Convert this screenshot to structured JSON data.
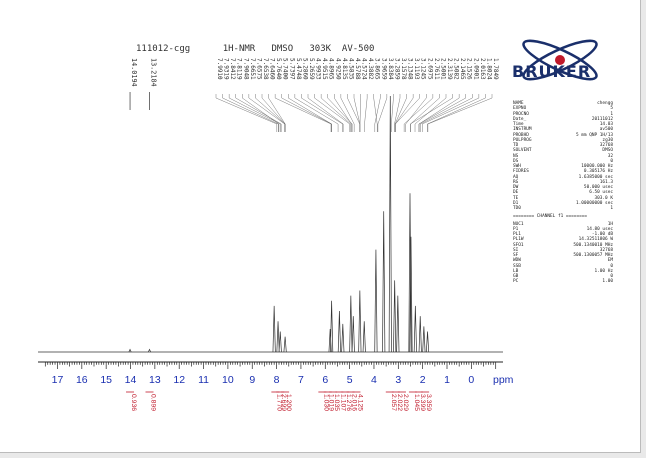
{
  "header": {
    "title": "111012-cgg      1H-NMR   DMSO   303K  AV-500"
  },
  "brand": {
    "name": "BRUKER",
    "color": "#1a2f6b",
    "accent": "#c0192a"
  },
  "params": [
    {
      "k": "NAME",
      "v": "chengg"
    },
    {
      "k": "EXPNO",
      "v": "5"
    },
    {
      "k": "PROCNO",
      "v": "1"
    },
    {
      "k": "Date_",
      "v": "20111012"
    },
    {
      "k": "Time",
      "v": "14.03"
    },
    {
      "k": "INSTRUM",
      "v": "av500"
    },
    {
      "k": "PROBHD",
      "v": "5 mm QNP 1H/13"
    },
    {
      "k": "PULPROG",
      "v": "zg30"
    },
    {
      "k": "TD",
      "v": "32768"
    },
    {
      "k": "SOLVENT",
      "v": "DMSO"
    },
    {
      "k": "NS",
      "v": "32"
    },
    {
      "k": "DS",
      "v": "0"
    },
    {
      "k": "SWH",
      "v": "10000.000 Hz"
    },
    {
      "k": "FIDRES",
      "v": "0.305176 Hz"
    },
    {
      "k": "AQ",
      "v": "1.6385000 sec"
    },
    {
      "k": "RG",
      "v": "161.3"
    },
    {
      "k": "DW",
      "v": "50.000 usec"
    },
    {
      "k": "DE",
      "v": "6.50 usec"
    },
    {
      "k": "TE",
      "v": "303.0 K"
    },
    {
      "k": "D1",
      "v": "1.00000000 sec"
    },
    {
      "k": "TD0",
      "v": "1"
    }
  ],
  "channel_title": "======== CHANNEL f1 ========",
  "channel": [
    {
      "k": "NUC1",
      "v": "1H"
    },
    {
      "k": "P1",
      "v": "14.80 usec"
    },
    {
      "k": "PL1",
      "v": "-1.00 dB"
    },
    {
      "k": "PL1W",
      "v": "14.32511806 W"
    },
    {
      "k": "SFO1",
      "v": "500.1340010 MHz"
    },
    {
      "k": "SI",
      "v": "32768"
    },
    {
      "k": "SF",
      "v": "500.1300057 MHz"
    },
    {
      "k": "WDW",
      "v": "EM"
    },
    {
      "k": "SSB",
      "v": "0"
    },
    {
      "k": "LB",
      "v": "1.00 Hz"
    },
    {
      "k": "GB",
      "v": "0"
    },
    {
      "k": "PC",
      "v": "1.00"
    }
  ],
  "chart_data": {
    "type": "line",
    "xlabel": "ppm",
    "xlim": [
      17.8,
      -1.3
    ],
    "axis_ticks": [
      "17",
      "16",
      "15",
      "14",
      "13",
      "12",
      "11",
      "10",
      "9",
      "8",
      "7",
      "6",
      "5",
      "4",
      "3",
      "2",
      "1",
      "0"
    ],
    "isolated_peak_labels": [
      "14.0194",
      "13.2184"
    ],
    "cluster_peak_labels": [
      "7.9910",
      "7.9319",
      "7.8412",
      "7.8119",
      "7.9048",
      "7.6651",
      "7.6575",
      "7.6538",
      "7.6460",
      "5.7640",
      "5.7400",
      "5.7397",
      "5.4748",
      "5.2860",
      "5.2659",
      "4.9933",
      "4.9515",
      "4.8965",
      "4.9250",
      "4.8135",
      "4.5835",
      "4.5788",
      "4.5724",
      "4.3882",
      "3.8665",
      "3.9659",
      "3.8384",
      "3.2859",
      "3.1578",
      "3.1348",
      "3.1193",
      "3.1245",
      "2.6975",
      "2.7611",
      "2.5001",
      "2.3139",
      "2.5082",
      "2.1465",
      "2.1526",
      "2.0901",
      "2.0163",
      "1.8024",
      "1.7849"
    ],
    "integrals": [
      {
        "ppm": 14.02,
        "value": "0.936"
      },
      {
        "ppm": 13.22,
        "value": "0.899"
      },
      {
        "ppm": 8.05,
        "value": "1.770"
      },
      {
        "ppm": 7.85,
        "value": "2.699"
      },
      {
        "ppm": 7.65,
        "value": "1.200"
      },
      {
        "ppm": 6.12,
        "value": "1.030"
      },
      {
        "ppm": 5.9,
        "value": "1.019"
      },
      {
        "ppm": 5.68,
        "value": "1.035"
      },
      {
        "ppm": 5.42,
        "value": "1.107"
      },
      {
        "ppm": 5.18,
        "value": "1.276"
      },
      {
        "ppm": 4.96,
        "value": "2.016"
      },
      {
        "ppm": 4.72,
        "value": "4.125"
      },
      {
        "ppm": 3.35,
        "value": "2.057"
      },
      {
        "ppm": 3.1,
        "value": "2.022"
      },
      {
        "ppm": 2.85,
        "value": "2.029"
      },
      {
        "ppm": 2.4,
        "value": "1.045"
      },
      {
        "ppm": 2.15,
        "value": "3.399"
      },
      {
        "ppm": 1.9,
        "value": "3.359"
      }
    ],
    "peaks": [
      {
        "ppm": 14.02,
        "h": 0.01
      },
      {
        "ppm": 13.22,
        "h": 0.01
      },
      {
        "ppm": 8.1,
        "h": 0.18
      },
      {
        "ppm": 7.94,
        "h": 0.12
      },
      {
        "ppm": 7.85,
        "h": 0.08
      },
      {
        "ppm": 7.65,
        "h": 0.06
      },
      {
        "ppm": 5.8,
        "h": 0.09
      },
      {
        "ppm": 5.74,
        "h": 0.2
      },
      {
        "ppm": 5.42,
        "h": 0.16
      },
      {
        "ppm": 5.28,
        "h": 0.11
      },
      {
        "ppm": 4.95,
        "h": 0.22
      },
      {
        "ppm": 4.85,
        "h": 0.14
      },
      {
        "ppm": 4.58,
        "h": 0.24
      },
      {
        "ppm": 4.4,
        "h": 0.12
      },
      {
        "ppm": 3.92,
        "h": 0.4
      },
      {
        "ppm": 3.6,
        "h": 0.55
      },
      {
        "ppm": 3.33,
        "h": 1.0
      },
      {
        "ppm": 3.15,
        "h": 0.28
      },
      {
        "ppm": 3.02,
        "h": 0.22
      },
      {
        "ppm": 2.52,
        "h": 0.62
      },
      {
        "ppm": 2.48,
        "h": 0.45
      },
      {
        "ppm": 2.3,
        "h": 0.18
      },
      {
        "ppm": 2.1,
        "h": 0.14
      },
      {
        "ppm": 1.95,
        "h": 0.1
      },
      {
        "ppm": 1.8,
        "h": 0.08
      }
    ]
  }
}
